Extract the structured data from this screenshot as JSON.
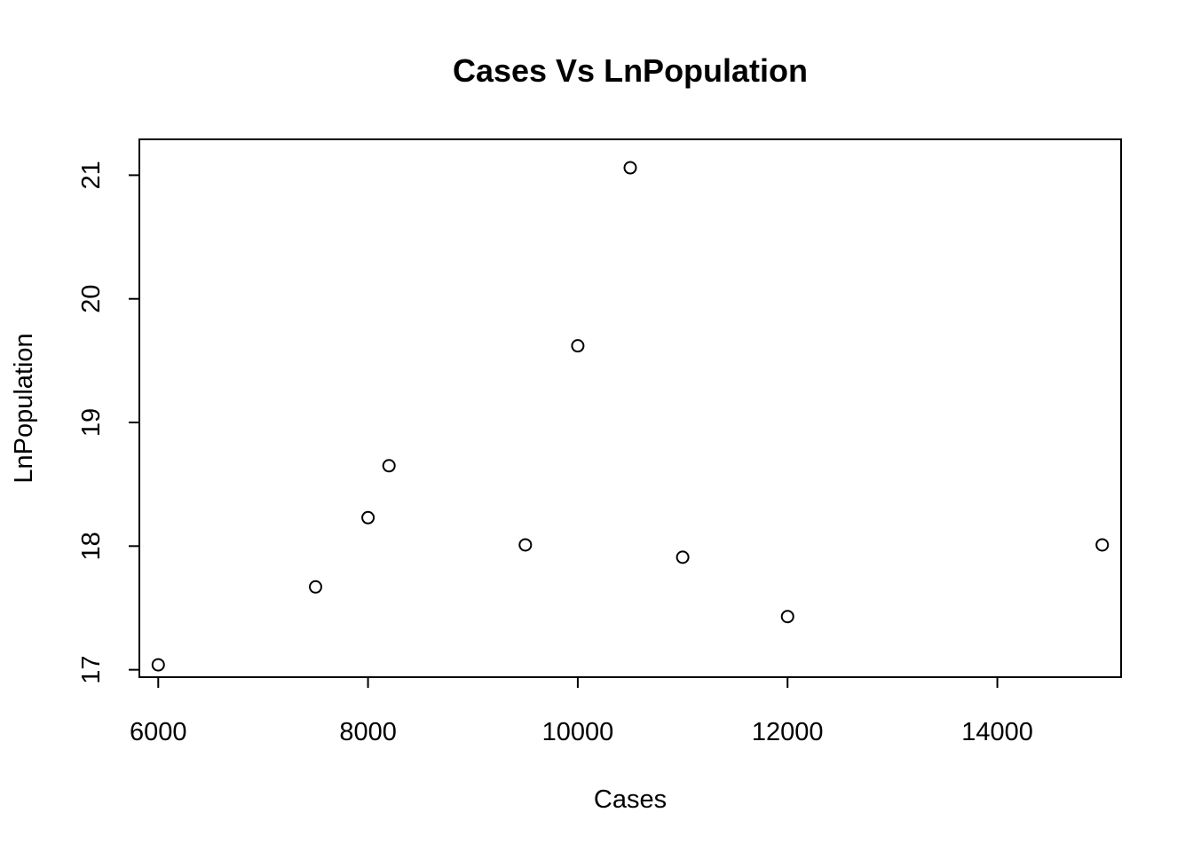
{
  "chart_data": {
    "type": "scatter",
    "title": "Cases Vs LnPopulation",
    "xlabel": "Cases",
    "ylabel": "LnPopulation",
    "xlim": [
      5820,
      15180
    ],
    "ylim": [
      16.94,
      21.29
    ],
    "x_ticks": [
      6000,
      8000,
      10000,
      12000,
      14000
    ],
    "y_ticks": [
      17,
      18,
      19,
      20,
      21
    ],
    "grid": false,
    "legend": "none",
    "point_style": "open-circle",
    "series": [
      {
        "points": [
          {
            "x": 6000,
            "y": 17.04
          },
          {
            "x": 7500,
            "y": 17.67
          },
          {
            "x": 8000,
            "y": 18.23
          },
          {
            "x": 8200,
            "y": 18.65
          },
          {
            "x": 9500,
            "y": 18.01
          },
          {
            "x": 10000,
            "y": 19.62
          },
          {
            "x": 10500,
            "y": 21.06
          },
          {
            "x": 11000,
            "y": 17.91
          },
          {
            "x": 12000,
            "y": 17.43
          },
          {
            "x": 15000,
            "y": 18.01
          }
        ]
      }
    ]
  }
}
